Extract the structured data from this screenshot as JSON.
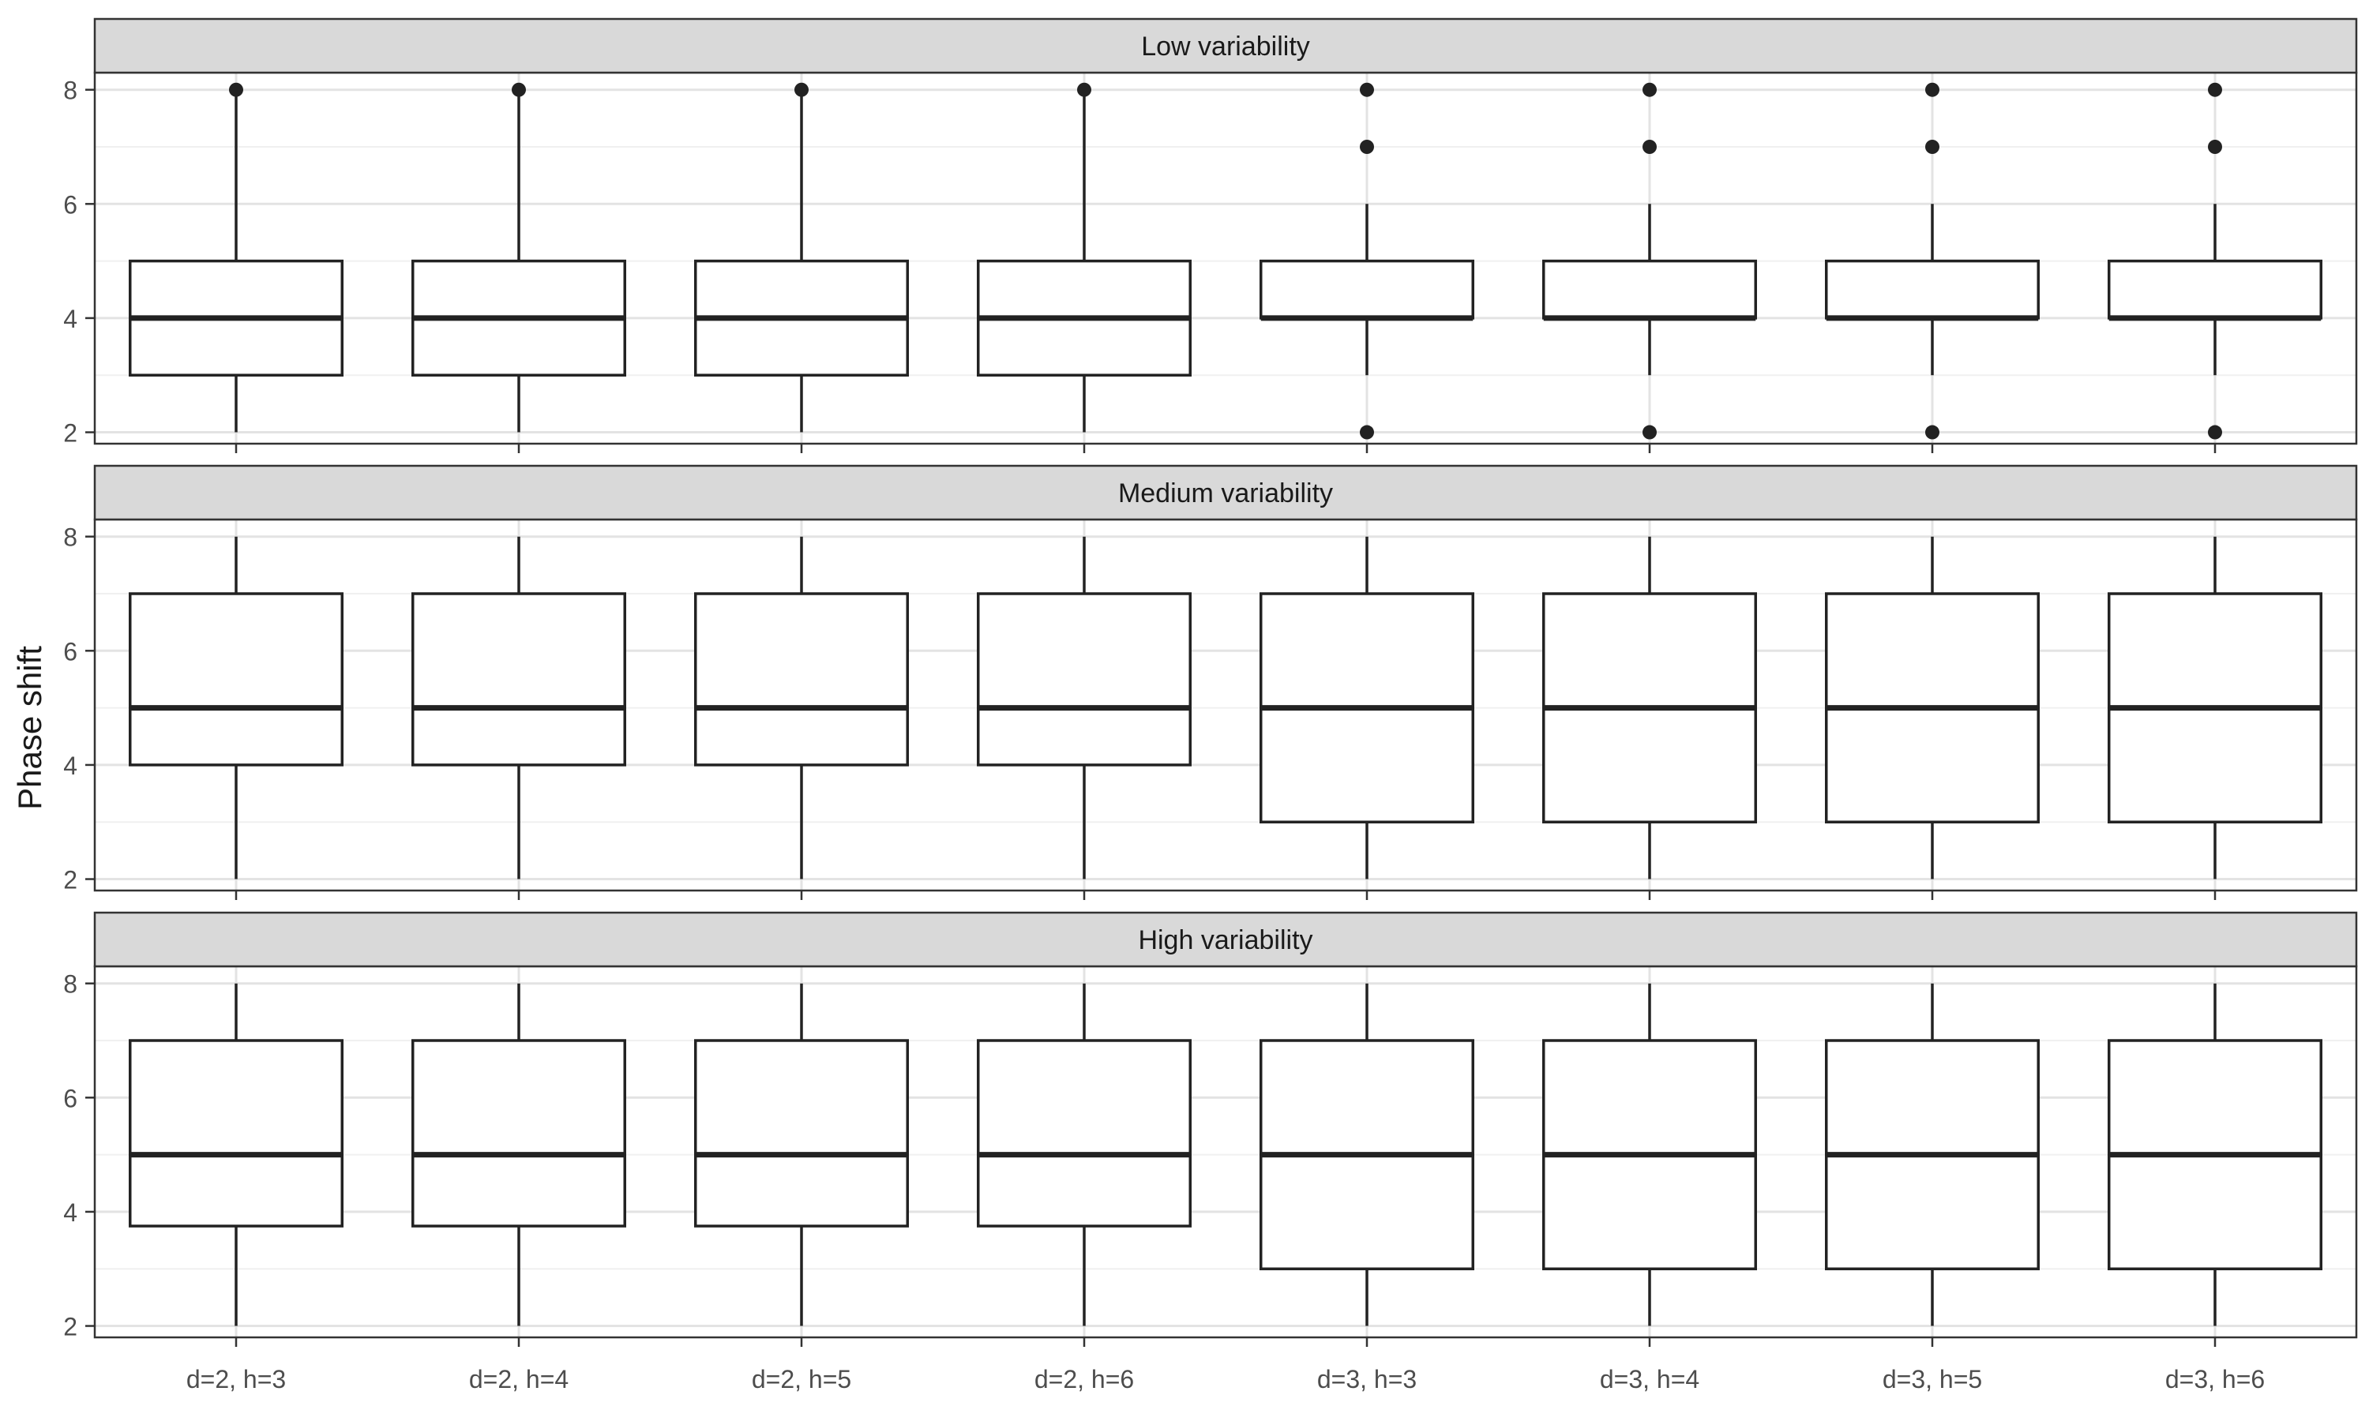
{
  "chart_data": {
    "type": "boxplot",
    "ylabel": "Phase shift",
    "xlabel": "",
    "ylim": [
      1.8,
      8.3
    ],
    "yticks": [
      2,
      4,
      6,
      8
    ],
    "grid": true,
    "categories": [
      "d=2, h=3",
      "d=2, h=4",
      "d=2, h=5",
      "d=2, h=6",
      "d=3, h=3",
      "d=3, h=4",
      "d=3, h=5",
      "d=3, h=6"
    ],
    "panels": [
      {
        "title": "Low variability",
        "boxes": [
          {
            "low": 2,
            "q1": 3,
            "median": 4,
            "q3": 5,
            "high": 8,
            "outliers": [
              8
            ]
          },
          {
            "low": 2,
            "q1": 3,
            "median": 4,
            "q3": 5,
            "high": 8,
            "outliers": [
              8
            ]
          },
          {
            "low": 2,
            "q1": 3,
            "median": 4,
            "q3": 5,
            "high": 8,
            "outliers": [
              8
            ]
          },
          {
            "low": 2,
            "q1": 3,
            "median": 4,
            "q3": 5,
            "high": 8,
            "outliers": [
              8
            ]
          },
          {
            "low": 3,
            "q1": 4,
            "median": 4,
            "q3": 5,
            "high": 6,
            "outliers": [
              2,
              7,
              8
            ]
          },
          {
            "low": 3,
            "q1": 4,
            "median": 4,
            "q3": 5,
            "high": 6,
            "outliers": [
              2,
              7,
              8
            ]
          },
          {
            "low": 3,
            "q1": 4,
            "median": 4,
            "q3": 5,
            "high": 6,
            "outliers": [
              2,
              7,
              8
            ]
          },
          {
            "low": 3,
            "q1": 4,
            "median": 4,
            "q3": 5,
            "high": 6,
            "outliers": [
              2,
              7,
              8
            ]
          }
        ]
      },
      {
        "title": "Medium  variability",
        "boxes": [
          {
            "low": 2,
            "q1": 4,
            "median": 5,
            "q3": 7,
            "high": 8,
            "outliers": []
          },
          {
            "low": 2,
            "q1": 4,
            "median": 5,
            "q3": 7,
            "high": 8,
            "outliers": []
          },
          {
            "low": 2,
            "q1": 4,
            "median": 5,
            "q3": 7,
            "high": 8,
            "outliers": []
          },
          {
            "low": 2,
            "q1": 4,
            "median": 5,
            "q3": 7,
            "high": 8,
            "outliers": []
          },
          {
            "low": 2,
            "q1": 3,
            "median": 5,
            "q3": 7,
            "high": 8,
            "outliers": []
          },
          {
            "low": 2,
            "q1": 3,
            "median": 5,
            "q3": 7,
            "high": 8,
            "outliers": []
          },
          {
            "low": 2,
            "q1": 3,
            "median": 5,
            "q3": 7,
            "high": 8,
            "outliers": []
          },
          {
            "low": 2,
            "q1": 3,
            "median": 5,
            "q3": 7,
            "high": 8,
            "outliers": []
          }
        ]
      },
      {
        "title": "High variability",
        "boxes": [
          {
            "low": 2,
            "q1": 3.75,
            "median": 5,
            "q3": 7,
            "high": 8,
            "outliers": []
          },
          {
            "low": 2,
            "q1": 3.75,
            "median": 5,
            "q3": 7,
            "high": 8,
            "outliers": []
          },
          {
            "low": 2,
            "q1": 3.75,
            "median": 5,
            "q3": 7,
            "high": 8,
            "outliers": []
          },
          {
            "low": 2,
            "q1": 3.75,
            "median": 5,
            "q3": 7,
            "high": 8,
            "outliers": []
          },
          {
            "low": 2,
            "q1": 3,
            "median": 5,
            "q3": 7,
            "high": 8,
            "outliers": []
          },
          {
            "low": 2,
            "q1": 3,
            "median": 5,
            "q3": 7,
            "high": 8,
            "outliers": []
          },
          {
            "low": 2,
            "q1": 3,
            "median": 5,
            "q3": 7,
            "high": 8,
            "outliers": []
          },
          {
            "low": 2,
            "q1": 3,
            "median": 5,
            "q3": 7,
            "high": 8,
            "outliers": []
          }
        ]
      }
    ]
  }
}
